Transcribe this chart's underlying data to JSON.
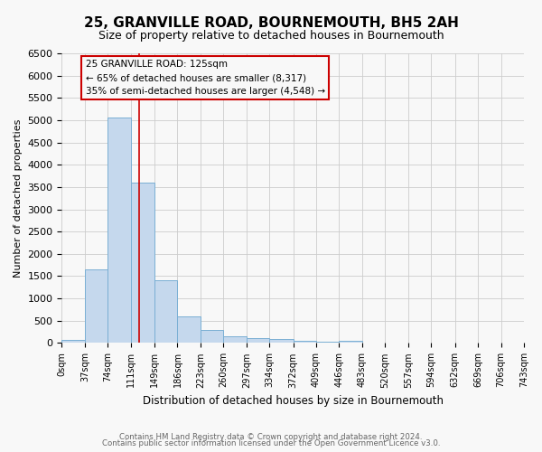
{
  "title": "25, GRANVILLE ROAD, BOURNEMOUTH, BH5 2AH",
  "subtitle": "Size of property relative to detached houses in Bournemouth",
  "xlabel": "Distribution of detached houses by size in Bournemouth",
  "ylabel": "Number of detached properties",
  "bar_heights": [
    75,
    1650,
    5050,
    3600,
    1400,
    600,
    300,
    150,
    120,
    100,
    50,
    30,
    50,
    0,
    0,
    0,
    0,
    0,
    0,
    0
  ],
  "bin_edges": [
    0,
    37,
    74,
    111,
    149,
    186,
    223,
    260,
    297,
    334,
    372,
    409,
    446,
    483,
    520,
    557,
    594,
    632,
    669,
    706,
    743
  ],
  "tick_labels": [
    "0sqm",
    "37sqm",
    "74sqm",
    "111sqm",
    "149sqm",
    "186sqm",
    "223sqm",
    "260sqm",
    "297sqm",
    "334sqm",
    "372sqm",
    "409sqm",
    "446sqm",
    "483sqm",
    "520sqm",
    "557sqm",
    "594sqm",
    "632sqm",
    "669sqm",
    "706sqm",
    "743sqm"
  ],
  "bar_color": "#c5d8ed",
  "bar_edge_color": "#7aafd4",
  "property_line_x": 125,
  "property_line_color": "#cc0000",
  "ylim": [
    0,
    6500
  ],
  "yticks": [
    0,
    500,
    1000,
    1500,
    2000,
    2500,
    3000,
    3500,
    4000,
    4500,
    5000,
    5500,
    6000,
    6500
  ],
  "annotation_text": "25 GRANVILLE ROAD: 125sqm\n← 65% of detached houses are smaller (8,317)\n35% of semi-detached houses are larger (4,548) →",
  "annotation_box_color": "#cc0000",
  "footer_line1": "Contains HM Land Registry data © Crown copyright and database right 2024.",
  "footer_line2": "Contains public sector information licensed under the Open Government Licence v3.0.",
  "grid_color": "#cccccc",
  "bg_color": "#f8f8f8",
  "title_fontsize": 11,
  "subtitle_fontsize": 9
}
